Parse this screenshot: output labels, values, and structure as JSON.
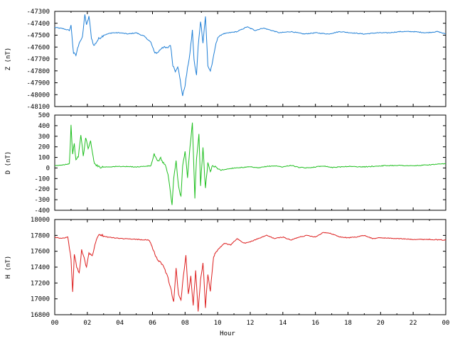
{
  "chart_data": [
    {
      "type": "line",
      "ylabel": "Z (nT)",
      "color": "#1f7fd6",
      "ylim": [
        -48100,
        -47300
      ],
      "yticks": [
        "-47300",
        "-47400",
        "-47500",
        "-47600",
        "-47700",
        "-47800",
        "-47900",
        "-48000",
        "-48100"
      ],
      "ytick_values": [
        -47300,
        -47400,
        -47500,
        -47600,
        -47700,
        -47800,
        -47900,
        -48000,
        -48100
      ],
      "x": [
        0,
        0.5,
        0.9,
        1.0,
        1.15,
        1.3,
        1.5,
        1.7,
        1.85,
        1.95,
        2.1,
        2.25,
        2.4,
        2.7,
        3.0,
        3.5,
        4.0,
        4.5,
        5.0,
        5.5,
        5.9,
        6.1,
        6.3,
        6.6,
        6.9,
        7.1,
        7.25,
        7.4,
        7.55,
        7.7,
        7.85,
        8.0,
        8.15,
        8.3,
        8.45,
        8.55,
        8.7,
        8.8,
        8.95,
        9.1,
        9.25,
        9.4,
        9.55,
        9.7,
        9.85,
        10.0,
        10.3,
        10.7,
        11.2,
        11.8,
        12.3,
        12.8,
        13.3,
        13.8,
        14.5,
        15.3,
        16.0,
        16.8,
        17.5,
        18.2,
        19.0,
        19.8,
        20.5,
        21.2,
        22.0,
        22.8,
        23.5,
        24.0
      ],
      "y": [
        -47435,
        -47445,
        -47460,
        -47420,
        -47650,
        -47670,
        -47560,
        -47520,
        -47320,
        -47420,
        -47340,
        -47520,
        -47590,
        -47530,
        -47500,
        -47480,
        -47480,
        -47490,
        -47480,
        -47510,
        -47560,
        -47640,
        -47650,
        -47600,
        -47610,
        -47580,
        -47750,
        -47800,
        -47760,
        -47880,
        -48010,
        -47920,
        -47780,
        -47650,
        -47460,
        -47710,
        -47840,
        -47600,
        -47380,
        -47560,
        -47340,
        -47760,
        -47800,
        -47720,
        -47600,
        -47520,
        -47490,
        -47480,
        -47470,
        -47430,
        -47460,
        -47440,
        -47460,
        -47480,
        -47470,
        -47490,
        -47480,
        -47490,
        -47470,
        -47480,
        -47490,
        -47480,
        -47480,
        -47470,
        -47470,
        -47480,
        -47470,
        -47490
      ]
    },
    {
      "type": "line",
      "ylabel": "D (nT)",
      "color": "#1fbf1f",
      "ylim": [
        -400,
        500
      ],
      "yticks": [
        "500",
        "400",
        "300",
        "200",
        "100",
        "0",
        "-100",
        "-200",
        "-300",
        "-400"
      ],
      "ytick_values": [
        500,
        400,
        300,
        200,
        100,
        0,
        -100,
        -200,
        -300,
        -400
      ],
      "x": [
        0,
        0.5,
        0.9,
        1.0,
        1.1,
        1.2,
        1.3,
        1.45,
        1.6,
        1.75,
        1.9,
        2.05,
        2.2,
        2.4,
        2.6,
        2.8,
        3.2,
        4.0,
        5.0,
        5.9,
        6.1,
        6.3,
        6.5,
        6.8,
        6.95,
        7.1,
        7.2,
        7.3,
        7.45,
        7.6,
        7.75,
        7.85,
        8.0,
        8.15,
        8.3,
        8.45,
        8.6,
        8.7,
        8.85,
        8.95,
        9.1,
        9.25,
        9.4,
        9.55,
        9.7,
        9.9,
        10.2,
        10.6,
        11.0,
        11.5,
        12.0,
        12.5,
        13.0,
        13.5,
        14.0,
        14.5,
        15.0,
        15.5,
        16.0,
        16.5,
        17.0,
        17.5,
        18.0,
        19.0,
        20.0,
        21.0,
        22.0,
        23.0,
        24.0
      ],
      "y": [
        20,
        30,
        40,
        400,
        120,
        240,
        70,
        110,
        310,
        120,
        280,
        190,
        250,
        60,
        20,
        10,
        10,
        15,
        10,
        20,
        130,
        60,
        90,
        20,
        -60,
        -230,
        -350,
        -100,
        60,
        -180,
        -270,
        30,
        160,
        -90,
        190,
        420,
        -280,
        80,
        320,
        -160,
        200,
        -200,
        60,
        -40,
        30,
        0,
        -20,
        -10,
        0,
        5,
        10,
        0,
        15,
        20,
        10,
        25,
        5,
        0,
        10,
        20,
        5,
        10,
        15,
        10,
        20,
        25,
        20,
        30,
        40
      ]
    },
    {
      "type": "line",
      "xlabel": "Hour",
      "ylabel": "H (nT)",
      "color": "#dd1f1f",
      "ylim": [
        16800,
        18000
      ],
      "yticks": [
        "18000",
        "17800",
        "17600",
        "17400",
        "17200",
        "17000",
        "16800"
      ],
      "ytick_values": [
        18000,
        17800,
        17600,
        17400,
        17200,
        17000,
        16800
      ],
      "x": [
        0,
        0.4,
        0.8,
        1.0,
        1.1,
        1.2,
        1.35,
        1.5,
        1.65,
        1.8,
        1.95,
        2.1,
        2.3,
        2.6,
        2.8,
        3.2,
        4.0,
        5.0,
        5.8,
        6.1,
        6.3,
        6.6,
        6.9,
        7.1,
        7.3,
        7.45,
        7.6,
        7.75,
        7.9,
        8.05,
        8.2,
        8.35,
        8.5,
        8.65,
        8.8,
        8.95,
        9.1,
        9.25,
        9.4,
        9.55,
        9.75,
        10.0,
        10.4,
        10.8,
        11.2,
        11.6,
        12.0,
        12.5,
        13.0,
        13.5,
        14.0,
        14.5,
        15.0,
        15.5,
        16.0,
        16.5,
        17.0,
        17.5,
        18.0,
        18.5,
        19.0,
        19.5,
        20.0,
        21.0,
        22.0,
        23.0,
        24.0
      ],
      "y": [
        17780,
        17760,
        17780,
        17500,
        17080,
        17560,
        17400,
        17320,
        17620,
        17520,
        17400,
        17580,
        17550,
        17780,
        17810,
        17780,
        17760,
        17750,
        17740,
        17600,
        17480,
        17440,
        17300,
        17150,
        16960,
        17380,
        17050,
        16980,
        17300,
        17550,
        17050,
        17280,
        16920,
        17350,
        16840,
        17260,
        17450,
        16900,
        17320,
        17100,
        17540,
        17620,
        17700,
        17680,
        17760,
        17700,
        17720,
        17760,
        17800,
        17760,
        17780,
        17740,
        17780,
        17800,
        17780,
        17840,
        17820,
        17780,
        17770,
        17780,
        17800,
        17760,
        17770,
        17760,
        17750,
        17750,
        17740
      ]
    }
  ],
  "x_axis": {
    "range": [
      0,
      24
    ],
    "ticks": [
      "00",
      "02",
      "04",
      "06",
      "08",
      "10",
      "12",
      "14",
      "16",
      "18",
      "20",
      "22",
      "00"
    ],
    "tick_values": [
      0,
      2,
      4,
      6,
      8,
      10,
      12,
      14,
      16,
      18,
      20,
      22,
      24
    ],
    "label": "Hour"
  }
}
